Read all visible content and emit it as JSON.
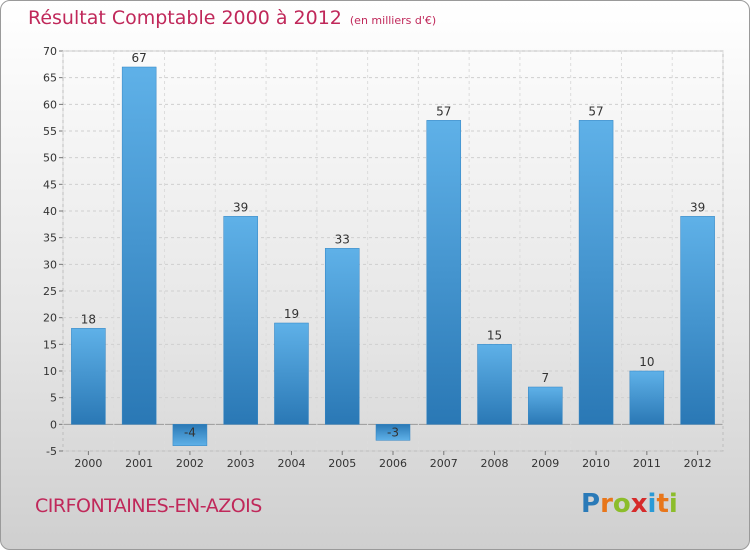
{
  "header": {
    "title": "Résultat Comptable 2000 à 2012",
    "subtitle": "(en milliers d'€)"
  },
  "footer": {
    "commune": "CIRFONTAINES-EN-AZOIS",
    "logo_letters": [
      "P",
      "r",
      "o",
      "x",
      "i",
      "t",
      "i"
    ],
    "logo_colors": [
      "#2a7ab8",
      "#e8761a",
      "#8cbd2b",
      "#d62a2a",
      "#2a9ad6",
      "#e8761a",
      "#8cbd2b"
    ]
  },
  "chart_data": {
    "type": "bar",
    "categories": [
      "2000",
      "2001",
      "2002",
      "2003",
      "2004",
      "2005",
      "2006",
      "2007",
      "2008",
      "2009",
      "2010",
      "2011",
      "2012"
    ],
    "values": [
      18,
      67,
      -4,
      39,
      19,
      33,
      -3,
      57,
      15,
      7,
      57,
      10,
      39
    ],
    "data_labels": [
      "18",
      "67",
      "-4",
      "39",
      "19",
      "33",
      "-3",
      "57",
      "15",
      "7",
      "57",
      "10",
      "39"
    ],
    "yticks": [
      -5,
      0,
      5,
      10,
      15,
      20,
      25,
      30,
      35,
      40,
      45,
      50,
      55,
      60,
      65,
      70
    ],
    "ylim": [
      -5,
      70
    ],
    "grid": true,
    "bar_color": "#3f95d4"
  }
}
